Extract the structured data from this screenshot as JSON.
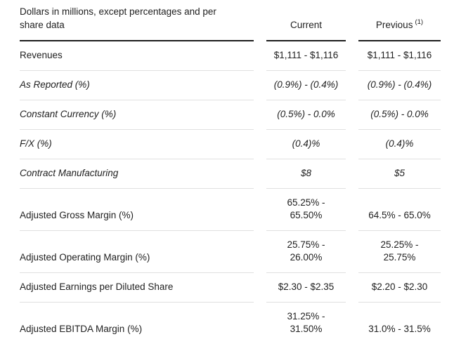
{
  "table": {
    "unit_note": "Dollars in millions, except percentages and per\nshare data",
    "columns": [
      {
        "label": "Current"
      },
      {
        "label": "Previous",
        "footnote_marker": "(1)"
      }
    ],
    "rows": [
      {
        "label": "Revenues",
        "current": "$1,111 - $1,116",
        "previous": "$1,111 - $1,116",
        "italic": false
      },
      {
        "label": "As Reported (%)",
        "current": "(0.9%) - (0.4%)",
        "previous": "(0.9%) - (0.4%)",
        "italic": true
      },
      {
        "label": "Constant Currency (%)",
        "current": "(0.5%) - 0.0%",
        "previous": "(0.5%) - 0.0%",
        "italic": true
      },
      {
        "label": "F/X (%)",
        "current": "(0.4)%",
        "previous": "(0.4)%",
        "italic": true
      },
      {
        "label": "Contract Manufacturing",
        "current": "$8",
        "previous": "$5",
        "italic": true
      },
      {
        "label": "Adjusted Gross Margin (%)",
        "current": "65.25% -\n65.50%",
        "previous": "64.5% - 65.0%",
        "italic": false
      },
      {
        "label": "Adjusted Operating Margin (%)",
        "current": "25.75% -\n26.00%",
        "previous": "25.25% -\n25.75%",
        "italic": false
      },
      {
        "label": "Adjusted Earnings per Diluted Share",
        "current": "$2.30 - $2.35",
        "previous": "$2.20 - $2.30",
        "italic": false
      },
      {
        "label": "Adjusted EBITDA Margin (%)",
        "current": "31.25% -\n31.50%",
        "previous": "31.0% - 31.5%",
        "italic": false
      }
    ],
    "colors": {
      "header_rule": "#1c1c1c",
      "row_rule": "#e0e0e0",
      "text": "#212121",
      "background": "#ffffff"
    }
  }
}
